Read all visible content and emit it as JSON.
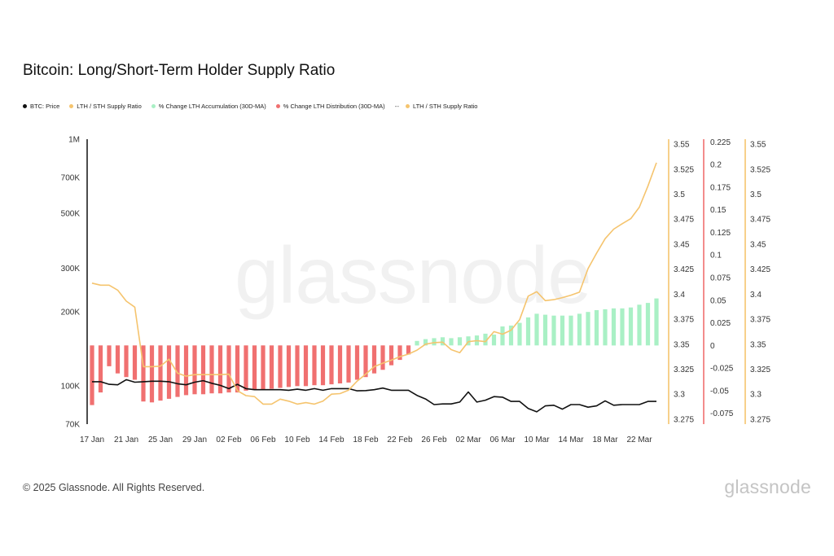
{
  "title": "Bitcoin: Long/Short-Term Holder Supply Ratio",
  "legend": [
    {
      "label": "BTC: Price",
      "color": "#111111",
      "style": "dot"
    },
    {
      "label": "LTH / STH Supply Ratio",
      "color": "#f5c46e",
      "style": "dot"
    },
    {
      "label": "% Change LTH Accumulation (30D-MA)",
      "color": "#a9f0c5",
      "style": "dot"
    },
    {
      "label": "% Change LTH Distribution (30D-MA)",
      "color": "#f07070",
      "style": "dot"
    },
    {
      "label": "LTH / STH Supply Ratio",
      "color": "#f5c46e",
      "style": "dash"
    }
  ],
  "watermark": "glassnode",
  "footer": {
    "copyright": "© 2025 Glassnode. All Rights Reserved.",
    "logo": "glassnode"
  },
  "colors": {
    "price": "#111111",
    "ratio": "#f5c46e",
    "accumulation": "#a9f0c5",
    "distribution": "#f07070",
    "pct_axis": "#f07070",
    "ratio_axis": "#f5c46e"
  },
  "chart_data": {
    "type": "line",
    "x_tick_labels": [
      "17 Jan",
      "21 Jan",
      "25 Jan",
      "29 Jan",
      "02 Feb",
      "06 Feb",
      "10 Feb",
      "14 Feb",
      "18 Feb",
      "22 Feb",
      "26 Feb",
      "02 Mar",
      "06 Mar",
      "10 Mar",
      "14 Mar",
      "18 Mar",
      "22 Mar"
    ],
    "x_start": "2025-01-17",
    "x_end": "2025-03-24",
    "y_left": {
      "scale": "log",
      "range": [
        70000,
        1000000
      ],
      "ticks": [
        70000,
        100000,
        200000,
        300000,
        500000,
        700000,
        1000000
      ],
      "tick_labels": [
        "70K",
        "100K",
        "200K",
        "300K",
        "500K",
        "700K",
        "1M"
      ]
    },
    "y_ratio": {
      "range": [
        3.27,
        3.555
      ],
      "tick_labels": [
        "3.275",
        "3.3",
        "3.325",
        "3.35",
        "3.375",
        "3.4",
        "3.425",
        "3.45",
        "3.475",
        "3.5",
        "3.525",
        "3.55"
      ]
    },
    "y_pct": {
      "range": [
        -0.087,
        0.228
      ],
      "tick_labels": [
        "-0.075",
        "-0.05",
        "-0.025",
        "0",
        "0.025",
        "0.05",
        "0.075",
        "0.1",
        "0.125",
        "0.15",
        "0.175",
        "0.2",
        "0.225"
      ]
    },
    "grid": false,
    "legend_position": "top-left",
    "series": [
      {
        "name": "BTC: Price",
        "axis": "left",
        "dates": [
          "2025-01-17",
          "2025-01-18",
          "2025-01-19",
          "2025-01-20",
          "2025-01-21",
          "2025-01-22",
          "2025-01-23",
          "2025-01-24",
          "2025-01-25",
          "2025-01-26",
          "2025-01-27",
          "2025-01-28",
          "2025-01-29",
          "2025-01-30",
          "2025-01-31",
          "2025-02-01",
          "2025-02-02",
          "2025-02-03",
          "2025-02-04",
          "2025-02-05",
          "2025-02-06",
          "2025-02-07",
          "2025-02-08",
          "2025-02-09",
          "2025-02-10",
          "2025-02-11",
          "2025-02-12",
          "2025-02-13",
          "2025-02-14",
          "2025-02-15",
          "2025-02-16",
          "2025-02-17",
          "2025-02-18",
          "2025-02-19",
          "2025-02-20",
          "2025-02-21",
          "2025-02-22",
          "2025-02-23",
          "2025-02-24",
          "2025-02-25",
          "2025-02-26",
          "2025-02-27",
          "2025-02-28",
          "2025-03-01",
          "2025-03-02",
          "2025-03-03",
          "2025-03-04",
          "2025-03-05",
          "2025-03-06",
          "2025-03-07",
          "2025-03-08",
          "2025-03-09",
          "2025-03-10",
          "2025-03-11",
          "2025-03-12",
          "2025-03-13",
          "2025-03-14",
          "2025-03-15",
          "2025-03-16",
          "2025-03-17",
          "2025-03-18",
          "2025-03-19",
          "2025-03-20",
          "2025-03-21",
          "2025-03-22",
          "2025-03-23",
          "2025-03-24"
        ],
        "values": [
          104000,
          104000,
          101500,
          101000,
          106000,
          103500,
          104000,
          104500,
          104500,
          104000,
          102000,
          101000,
          103500,
          105000,
          102500,
          100500,
          97500,
          101500,
          97500,
          96500,
          96500,
          96500,
          96500,
          96000,
          97000,
          96000,
          97500,
          96000,
          97500,
          97500,
          97500,
          95500,
          95700,
          96500,
          98000,
          96000,
          96000,
          96000,
          91500,
          88500,
          84000,
          84500,
          84500,
          86000,
          94500,
          86000,
          87500,
          90500,
          90000,
          86500,
          86500,
          81000,
          78500,
          83000,
          83500,
          80500,
          84000,
          84000,
          82000,
          83000,
          87000,
          83500,
          84000,
          84000,
          84000,
          86500,
          86500
        ]
      },
      {
        "name": "LTH / STH Supply Ratio",
        "axis": "ratio",
        "dates": [
          "2025-01-17",
          "2025-01-18",
          "2025-01-19",
          "2025-01-20",
          "2025-01-21",
          "2025-01-22",
          "2025-01-23",
          "2025-01-24",
          "2025-01-25",
          "2025-01-26",
          "2025-01-27",
          "2025-01-28",
          "2025-01-29",
          "2025-01-30",
          "2025-01-31",
          "2025-02-01",
          "2025-02-02",
          "2025-02-03",
          "2025-02-04",
          "2025-02-05",
          "2025-02-06",
          "2025-02-07",
          "2025-02-08",
          "2025-02-09",
          "2025-02-10",
          "2025-02-11",
          "2025-02-12",
          "2025-02-13",
          "2025-02-14",
          "2025-02-15",
          "2025-02-16",
          "2025-02-17",
          "2025-02-18",
          "2025-02-19",
          "2025-02-20",
          "2025-02-21",
          "2025-02-22",
          "2025-02-23",
          "2025-02-24",
          "2025-02-25",
          "2025-02-26",
          "2025-02-27",
          "2025-02-28",
          "2025-03-01",
          "2025-03-02",
          "2025-03-03",
          "2025-03-04",
          "2025-03-05",
          "2025-03-06",
          "2025-03-07",
          "2025-03-08",
          "2025-03-09",
          "2025-03-10",
          "2025-03-11",
          "2025-03-12",
          "2025-03-13",
          "2025-03-14",
          "2025-03-15",
          "2025-03-16",
          "2025-03-17",
          "2025-03-18",
          "2025-03-19",
          "2025-03-20",
          "2025-03-21",
          "2025-03-22",
          "2025-03-23",
          "2025-03-24"
        ],
        "values": [
          3.411,
          3.409,
          3.409,
          3.404,
          3.393,
          3.387,
          3.3275,
          3.3275,
          3.328,
          3.335,
          3.321,
          3.318,
          3.3195,
          3.3195,
          3.3195,
          3.3195,
          3.32,
          3.3035,
          3.2985,
          3.2975,
          3.29,
          3.29,
          3.295,
          3.293,
          3.29,
          3.2915,
          3.29,
          3.293,
          3.3,
          3.3005,
          3.304,
          3.313,
          3.32,
          3.3275,
          3.331,
          3.334,
          3.3375,
          3.34,
          3.344,
          3.35,
          3.3515,
          3.352,
          3.3445,
          3.3415,
          3.3525,
          3.3535,
          3.3525,
          3.3625,
          3.36,
          3.364,
          3.3745,
          3.398,
          3.4025,
          3.3935,
          3.3945,
          3.3965,
          3.399,
          3.402,
          3.4255,
          3.441,
          3.4555,
          3.465,
          3.4705,
          3.4755,
          3.487,
          3.508,
          3.5315
        ]
      },
      {
        "name": "% Change LTH Distribution (30D-MA)",
        "axis": "pct",
        "dates": [
          "2025-01-17",
          "2025-01-18",
          "2025-01-19",
          "2025-01-20",
          "2025-01-21",
          "2025-01-22",
          "2025-01-23",
          "2025-01-24",
          "2025-01-25",
          "2025-01-26",
          "2025-01-27",
          "2025-01-28",
          "2025-01-29",
          "2025-01-30",
          "2025-01-31",
          "2025-02-01",
          "2025-02-02",
          "2025-02-03",
          "2025-02-04",
          "2025-02-05",
          "2025-02-06",
          "2025-02-07",
          "2025-02-08",
          "2025-02-09",
          "2025-02-10",
          "2025-02-11",
          "2025-02-12",
          "2025-02-13",
          "2025-02-14",
          "2025-02-15",
          "2025-02-16",
          "2025-02-17",
          "2025-02-18",
          "2025-02-19",
          "2025-02-20",
          "2025-02-21",
          "2025-02-22",
          "2025-02-23"
        ],
        "values": [
          -0.066,
          -0.052,
          -0.023,
          -0.031,
          -0.035,
          -0.038,
          -0.062,
          -0.063,
          -0.061,
          -0.059,
          -0.057,
          -0.055,
          -0.054,
          -0.054,
          -0.053,
          -0.053,
          -0.052,
          -0.052,
          -0.05,
          -0.049,
          -0.049,
          -0.048,
          -0.047,
          -0.046,
          -0.045,
          -0.045,
          -0.044,
          -0.044,
          -0.043,
          -0.042,
          -0.041,
          -0.038,
          -0.035,
          -0.031,
          -0.027,
          -0.022,
          -0.016,
          -0.01
        ]
      },
      {
        "name": "% Change LTH Accumulation (30D-MA)",
        "axis": "pct",
        "dates": [
          "2025-02-24",
          "2025-02-25",
          "2025-02-26",
          "2025-02-27",
          "2025-02-28",
          "2025-03-01",
          "2025-03-02",
          "2025-03-03",
          "2025-03-04",
          "2025-03-05",
          "2025-03-06",
          "2025-03-07",
          "2025-03-08",
          "2025-03-09",
          "2025-03-10",
          "2025-03-11",
          "2025-03-12",
          "2025-03-13",
          "2025-03-14",
          "2025-03-15",
          "2025-03-16",
          "2025-03-17",
          "2025-03-18",
          "2025-03-19",
          "2025-03-20",
          "2025-03-21",
          "2025-03-22",
          "2025-03-23",
          "2025-03-24"
        ],
        "values": [
          0.005,
          0.007,
          0.008,
          0.009,
          0.008,
          0.009,
          0.01,
          0.011,
          0.013,
          0.012,
          0.021,
          0.022,
          0.025,
          0.031,
          0.035,
          0.034,
          0.033,
          0.033,
          0.033,
          0.035,
          0.037,
          0.039,
          0.04,
          0.041,
          0.041,
          0.042,
          0.045,
          0.047,
          0.052
        ]
      }
    ]
  }
}
